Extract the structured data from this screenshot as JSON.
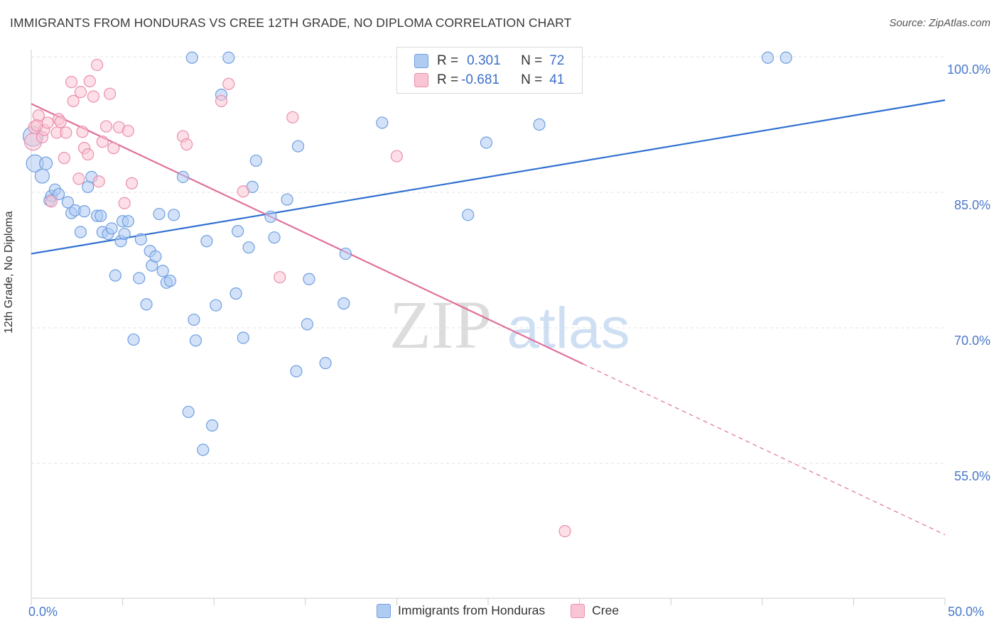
{
  "title": "IMMIGRANTS FROM HONDURAS VS CREE 12TH GRADE, NO DIPLOMA CORRELATION CHART",
  "source": "Source: ZipAtlas.com",
  "watermark": {
    "zip": "ZIP",
    "atlas": "atlas"
  },
  "legend_stats": {
    "rows": [
      {
        "r_label": "R =",
        "r_value": "0.301",
        "n_label": "N =",
        "n_value": "72",
        "color": "#aecbf2",
        "stroke": "#6f9fe0"
      },
      {
        "r_label": "R =",
        "r_value": "-0.681",
        "n_label": "N =",
        "n_value": "41",
        "color": "#f9c4d4",
        "stroke": "#ea8fae"
      }
    ]
  },
  "chart_data": {
    "type": "scatter",
    "xlabel": "",
    "ylabel": "12th Grade, No Diploma",
    "xlim": [
      0,
      50
    ],
    "ylim": [
      42,
      101
    ],
    "x_tick_labels": [
      {
        "value": 0,
        "label": "0.0%"
      },
      {
        "value": 50,
        "label": "50.0%"
      }
    ],
    "y_tick_labels": [
      {
        "value": 100,
        "label": "100.0%"
      },
      {
        "value": 85,
        "label": "85.0%"
      },
      {
        "value": 70,
        "label": "70.0%"
      },
      {
        "value": 55,
        "label": "55.0%"
      }
    ],
    "grid": "horizontal dashed",
    "legend_placement": "bottom-center",
    "series": [
      {
        "name": "Immigrants from Honduras",
        "color": "#aecbf2",
        "stroke": "#6f9fe0",
        "trend": {
          "x0": 0,
          "y0": 78.2,
          "x1": 50,
          "y1": 95.2,
          "color": "#2e6fd0"
        },
        "points": [
          [
            0.1,
            91.2,
            14
          ],
          [
            0.2,
            88.2,
            12
          ],
          [
            0.6,
            86.8,
            10
          ],
          [
            0.8,
            88.2,
            9
          ],
          [
            1.0,
            84.1,
            8
          ],
          [
            1.1,
            84.6,
            8
          ],
          [
            1.3,
            85.3,
            8
          ],
          [
            1.5,
            84.8,
            8
          ],
          [
            2.0,
            83.9,
            8
          ],
          [
            2.2,
            82.7,
            8
          ],
          [
            2.4,
            83.0,
            8
          ],
          [
            2.7,
            80.6,
            8
          ],
          [
            2.9,
            82.9,
            8
          ],
          [
            3.1,
            85.6,
            8
          ],
          [
            3.3,
            86.7,
            8
          ],
          [
            3.6,
            82.4,
            8
          ],
          [
            3.8,
            82.4,
            8
          ],
          [
            3.9,
            80.6,
            8
          ],
          [
            4.2,
            80.4,
            8
          ],
          [
            4.4,
            81.0,
            8
          ],
          [
            4.6,
            75.8,
            8
          ],
          [
            4.9,
            79.6,
            8
          ],
          [
            5.0,
            81.8,
            8
          ],
          [
            5.1,
            80.4,
            8
          ],
          [
            5.3,
            81.8,
            8
          ],
          [
            5.6,
            68.7,
            8
          ],
          [
            5.9,
            75.5,
            8
          ],
          [
            6.0,
            79.8,
            8
          ],
          [
            6.3,
            72.6,
            8
          ],
          [
            6.5,
            78.5,
            8
          ],
          [
            6.6,
            76.9,
            8
          ],
          [
            6.8,
            77.9,
            8
          ],
          [
            7.0,
            82.6,
            8
          ],
          [
            7.2,
            76.3,
            8
          ],
          [
            7.4,
            75.0,
            8
          ],
          [
            7.6,
            75.2,
            8
          ],
          [
            7.8,
            82.5,
            8
          ],
          [
            8.3,
            86.7,
            8
          ],
          [
            8.6,
            60.7,
            8
          ],
          [
            8.8,
            99.9,
            8
          ],
          [
            8.9,
            70.9,
            8
          ],
          [
            9.0,
            68.6,
            8
          ],
          [
            9.4,
            56.5,
            8
          ],
          [
            9.6,
            79.6,
            8
          ],
          [
            9.9,
            59.2,
            8
          ],
          [
            10.1,
            72.5,
            8
          ],
          [
            10.4,
            95.8,
            8
          ],
          [
            10.8,
            99.9,
            8
          ],
          [
            11.2,
            73.8,
            8
          ],
          [
            11.3,
            80.7,
            8
          ],
          [
            11.6,
            68.9,
            8
          ],
          [
            11.9,
            78.9,
            8
          ],
          [
            12.1,
            85.6,
            8
          ],
          [
            12.3,
            88.5,
            8
          ],
          [
            13.1,
            82.3,
            8
          ],
          [
            13.3,
            80.0,
            8
          ],
          [
            14.0,
            84.2,
            8
          ],
          [
            14.5,
            65.2,
            8
          ],
          [
            14.6,
            90.1,
            8
          ],
          [
            15.1,
            70.4,
            8
          ],
          [
            15.2,
            75.4,
            8
          ],
          [
            16.1,
            66.1,
            8
          ],
          [
            17.1,
            72.7,
            8
          ],
          [
            17.2,
            78.2,
            8
          ],
          [
            19.2,
            92.7,
            8
          ],
          [
            23.9,
            82.5,
            8
          ],
          [
            24.9,
            90.5,
            8
          ],
          [
            27.8,
            92.5,
            8
          ],
          [
            28.0,
            99.8,
            8
          ],
          [
            40.3,
            99.9,
            8
          ],
          [
            41.3,
            99.9,
            8
          ],
          [
            25.0,
            100.2,
            8
          ]
        ]
      },
      {
        "name": "Cree",
        "color": "#f9c4d4",
        "stroke": "#ea8fae",
        "trend": {
          "x0": 0,
          "y0": 94.8,
          "x1": 30.2,
          "y1": 66.0,
          "dash_x1": 50,
          "dash_y1": 47.1,
          "color": "#e0709b"
        },
        "points": [
          [
            0.1,
            90.6,
            12
          ],
          [
            0.2,
            92.2,
            9
          ],
          [
            0.4,
            93.5,
            8
          ],
          [
            0.6,
            91.1,
            8
          ],
          [
            0.7,
            91.9,
            8
          ],
          [
            0.9,
            92.7,
            8
          ],
          [
            1.1,
            84.0,
            8
          ],
          [
            1.4,
            91.6,
            8
          ],
          [
            1.5,
            93.1,
            8
          ],
          [
            1.6,
            92.8,
            8
          ],
          [
            1.8,
            88.8,
            8
          ],
          [
            1.9,
            91.6,
            8
          ],
          [
            2.2,
            97.2,
            8
          ],
          [
            2.3,
            95.1,
            8
          ],
          [
            2.6,
            86.5,
            8
          ],
          [
            2.7,
            96.1,
            8
          ],
          [
            2.8,
            91.7,
            8
          ],
          [
            2.9,
            89.9,
            8
          ],
          [
            3.1,
            89.2,
            8
          ],
          [
            3.2,
            97.3,
            8
          ],
          [
            3.4,
            95.6,
            8
          ],
          [
            3.6,
            99.1,
            8
          ],
          [
            3.7,
            86.2,
            8
          ],
          [
            3.9,
            90.6,
            8
          ],
          [
            4.1,
            92.3,
            8
          ],
          [
            4.3,
            95.9,
            8
          ],
          [
            4.5,
            89.9,
            8
          ],
          [
            4.8,
            92.2,
            8
          ],
          [
            5.1,
            83.8,
            8
          ],
          [
            5.3,
            91.8,
            8
          ],
          [
            5.5,
            86.0,
            8
          ],
          [
            8.3,
            91.2,
            8
          ],
          [
            8.5,
            90.3,
            8
          ],
          [
            10.4,
            95.1,
            8
          ],
          [
            10.8,
            97.0,
            8
          ],
          [
            11.6,
            85.1,
            8
          ],
          [
            13.6,
            75.6,
            8
          ],
          [
            14.3,
            93.3,
            8
          ],
          [
            20.0,
            89.0,
            8
          ],
          [
            29.2,
            47.5,
            8
          ],
          [
            0.3,
            92.4,
            8
          ]
        ]
      }
    ]
  }
}
